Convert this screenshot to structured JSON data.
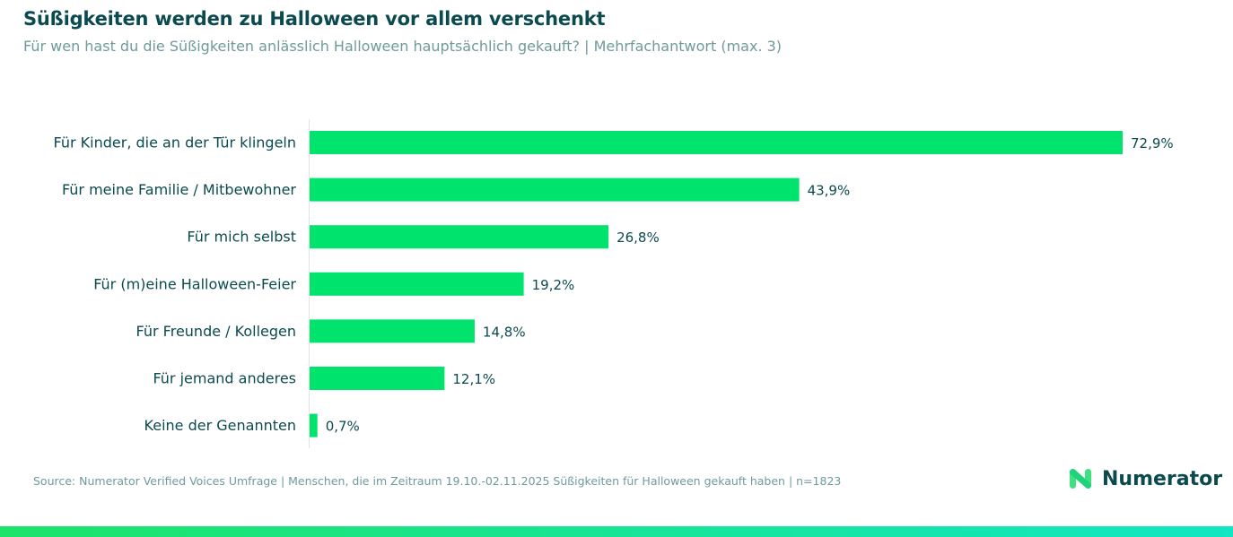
{
  "chart_data": {
    "type": "bar",
    "orientation": "horizontal",
    "title": "Süßigkeiten werden zu Halloween vor allem verschenkt",
    "subtitle": "Für wen hast du die Süßigkeiten anlässlich Halloween hauptsächlich gekauft? | Mehrfachantwort (max. 3)",
    "categories": [
      "Für Kinder, die an der Tür klingeln",
      "Für meine Familie / Mitbewohner",
      "Für mich selbst",
      "Für (m)eine Halloween-Feier",
      "Für Freunde / Kollegen",
      "Für jemand anderes",
      "Keine der Genannten"
    ],
    "values": [
      72.9,
      43.9,
      26.8,
      19.2,
      14.8,
      12.1,
      0.7
    ],
    "value_labels": [
      "72,9%",
      "43,9%",
      "26,8%",
      "19,2%",
      "14,8%",
      "12,1%",
      "0,7%"
    ],
    "unit": "%",
    "xlim": [
      0,
      72.9
    ],
    "grid": false,
    "bar_color": "#00e36d"
  },
  "footer": {
    "source": "Source: Numerator Verified Voices Umfrage | Menschen, die im Zeitraum 19.10.-02.11.2025 Süßigkeiten für Halloween gekauft haben | n=1823",
    "logo_text": "Numerator"
  },
  "colors": {
    "accent": "#00e36d",
    "text": "#0b4a4f",
    "muted": "#6f9a9c"
  }
}
